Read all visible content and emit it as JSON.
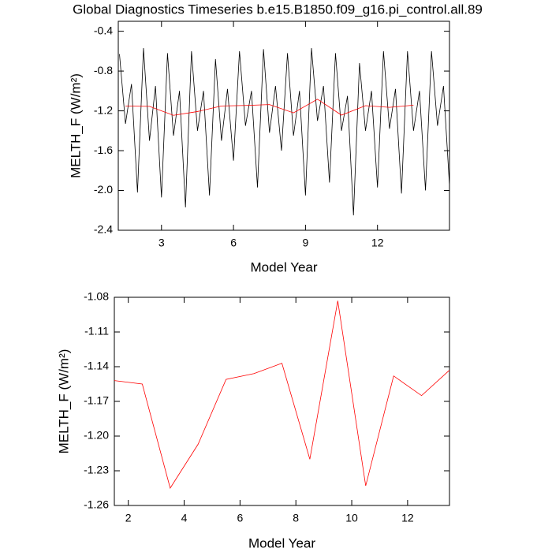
{
  "chart_data": [
    {
      "type": "line",
      "title": "Global Diagnostics Timeseries b.e15.B1850.f09_g16.pi_control.all.89",
      "x_label": "Model Year",
      "y_label": "MELTH_F (W/m²)",
      "xlim": [
        1.2,
        15
      ],
      "xticks": [
        3,
        6,
        9,
        12
      ],
      "ylim": [
        -2.4,
        -0.3
      ],
      "yticks": [
        -0.4,
        -0.8,
        -1.2,
        -1.6,
        {
          "value": -2,
          "label": "-2.0"
        },
        -2.4
      ],
      "series": [
        {
          "color": "#000000",
          "x": [
            1.25,
            1.5,
            1.75,
            2,
            2.25,
            2.5,
            2.75,
            3,
            3.25,
            3.5,
            3.75,
            4,
            4.25,
            4.5,
            4.75,
            5,
            5.25,
            5.5,
            5.75,
            6,
            6.25,
            6.5,
            6.75,
            7,
            7.25,
            7.5,
            7.75,
            8,
            8.25,
            8.5,
            8.75,
            9,
            9.25,
            9.5,
            9.75,
            10,
            10.25,
            10.5,
            10.75,
            11,
            11.25,
            11.5,
            11.75,
            12,
            12.25,
            12.5,
            12.75,
            13,
            13.25,
            13.5,
            13.75,
            14,
            14.25,
            14.5,
            14.75,
            15
          ],
          "values": [
            -0.63,
            -1.33,
            -0.93,
            -2.02,
            -0.57,
            -1.5,
            -0.95,
            -2.07,
            -0.62,
            -1.45,
            -1.0,
            -2.17,
            -0.6,
            -1.4,
            -1.0,
            -2.05,
            -0.68,
            -1.5,
            -0.98,
            -1.7,
            -0.6,
            -1.35,
            -1.0,
            -1.97,
            -0.58,
            -1.42,
            -0.95,
            -1.6,
            -0.62,
            -1.45,
            -1.0,
            -2.05,
            -0.57,
            -1.3,
            -0.95,
            -1.92,
            -0.62,
            -1.4,
            -1.05,
            -2.25,
            -0.72,
            -1.4,
            -1.0,
            -1.97,
            -0.6,
            -1.38,
            -0.98,
            -2.03,
            -0.6,
            -1.4,
            -1.0,
            -2.0,
            -0.6,
            -1.35,
            -0.95,
            -1.95
          ]
        },
        {
          "color": "#ff0000",
          "x": [
            1.5,
            2.5,
            3.5,
            4.5,
            5.5,
            6.5,
            7.5,
            8.5,
            9.5,
            10.5,
            11.5,
            12.5,
            13.5
          ],
          "values": [
            -1.152,
            -1.155,
            -1.245,
            -1.207,
            -1.151,
            -1.146,
            -1.137,
            -1.22,
            -1.083,
            -1.243,
            -1.148,
            -1.165,
            -1.143
          ]
        }
      ]
    },
    {
      "type": "line",
      "x_label": "Model Year",
      "y_label": "MELTH_F (W/m²)",
      "xlim": [
        1.5,
        13.5
      ],
      "xticks": [
        2,
        4,
        6,
        8,
        10,
        12
      ],
      "ylim": [
        -1.26,
        -1.08
      ],
      "yticks": [
        -1.08,
        -1.11,
        -1.14,
        -1.17,
        {
          "value": -1.2,
          "label": "-1.20"
        },
        -1.23,
        -1.26
      ],
      "series": [
        {
          "color": "#ff0000",
          "x": [
            1.5,
            2.5,
            3.5,
            4.5,
            5.5,
            6.5,
            7.5,
            8.5,
            9.5,
            10.5,
            11.5,
            12.5,
            13.5
          ],
          "values": [
            -1.152,
            -1.155,
            -1.245,
            -1.207,
            -1.151,
            -1.146,
            -1.137,
            -1.22,
            -1.083,
            -1.243,
            -1.148,
            -1.165,
            -1.143
          ]
        }
      ]
    }
  ]
}
